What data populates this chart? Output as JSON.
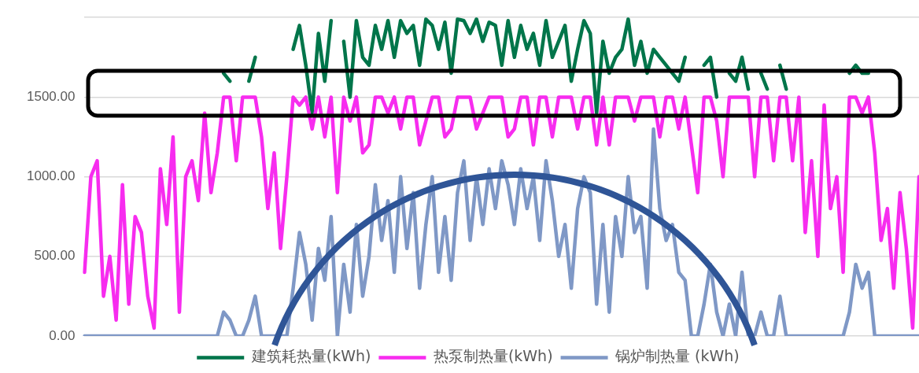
{
  "chart_data": {
    "type": "line",
    "categories": [
      null,
      null,
      null,
      null,
      null,
      null,
      null,
      null,
      null,
      null,
      null,
      null,
      null,
      null,
      null,
      null,
      null,
      null,
      null,
      null,
      null,
      null,
      null,
      null,
      null,
      null,
      null,
      null,
      null,
      null,
      null,
      null,
      null,
      null,
      null,
      null,
      null,
      null,
      null,
      null,
      null,
      null,
      null,
      null,
      null,
      null,
      null,
      null,
      null,
      null,
      null,
      null,
      null,
      null,
      null,
      null,
      null,
      null,
      null,
      null,
      null,
      null,
      null,
      null,
      null,
      null,
      null,
      null,
      null,
      null,
      null,
      null,
      null,
      null,
      null,
      null,
      null,
      null,
      null,
      null,
      null,
      null,
      null,
      null,
      null,
      null,
      null,
      null,
      null,
      null,
      null,
      null,
      null,
      null,
      null,
      null,
      null,
      null,
      null,
      null,
      null,
      null,
      null,
      null,
      null,
      null,
      null,
      null,
      null,
      null,
      null,
      null,
      null,
      null,
      null,
      null,
      null,
      null,
      null,
      null,
      null,
      null,
      null,
      null,
      null,
      null,
      null,
      null,
      null,
      null,
      null,
      null,
      null
    ],
    "series": [
      {
        "name": "建筑耗热量(kWh)",
        "color": "#00754a",
        "values": [
          null,
          null,
          null,
          null,
          null,
          null,
          null,
          null,
          null,
          null,
          null,
          null,
          null,
          null,
          null,
          null,
          null,
          null,
          null,
          null,
          null,
          null,
          1650,
          1600,
          null,
          null,
          1600,
          1750,
          null,
          null,
          null,
          null,
          null,
          1800,
          1950,
          1700,
          1400,
          1900,
          1600,
          1980,
          null,
          1850,
          1500,
          1980,
          1750,
          1700,
          1950,
          1800,
          1980,
          1750,
          1980,
          1900,
          1950,
          1700,
          1990,
          1950,
          1800,
          1970,
          1650,
          1990,
          1980,
          1900,
          1990,
          1850,
          1970,
          1950,
          1700,
          1980,
          1750,
          1950,
          1800,
          1900,
          1700,
          1980,
          1750,
          1850,
          1950,
          1600,
          1800,
          1980,
          1900,
          1400,
          1850,
          1650,
          1750,
          1800,
          1990,
          1700,
          1850,
          1650,
          1800,
          1750,
          1700,
          1650,
          1600,
          1750,
          null,
          null,
          1700,
          1750,
          1500,
          null,
          1650,
          1600,
          1750,
          1550,
          null,
          1650,
          1550,
          null,
          1700,
          1550,
          null,
          null,
          null,
          null,
          null,
          null,
          null,
          null,
          null,
          1650,
          1700,
          1650,
          1650,
          null,
          null,
          null,
          null,
          null,
          null,
          null,
          null
        ]
      },
      {
        "name": "热泵制热量(kWh)",
        "color": "#f72cef",
        "values": [
          400,
          1000,
          1100,
          250,
          500,
          100,
          950,
          200,
          750,
          650,
          250,
          50,
          1050,
          700,
          1250,
          150,
          1000,
          1100,
          850,
          1400,
          900,
          1150,
          1500,
          1500,
          1100,
          1500,
          1500,
          1500,
          1250,
          800,
          1150,
          550,
          1000,
          1500,
          1450,
          1500,
          1300,
          1500,
          1250,
          1500,
          900,
          1500,
          1350,
          1500,
          1150,
          1200,
          1500,
          1500,
          1400,
          1500,
          1300,
          1500,
          1500,
          1200,
          1350,
          1500,
          1500,
          1250,
          1300,
          1500,
          1500,
          1500,
          1300,
          1400,
          1500,
          1500,
          1500,
          1250,
          1300,
          1500,
          1500,
          1200,
          1500,
          1500,
          1250,
          1500,
          1500,
          1500,
          1300,
          1500,
          1500,
          1200,
          1500,
          1200,
          1500,
          1500,
          1500,
          1350,
          1500,
          1500,
          1500,
          1250,
          1500,
          1500,
          1300,
          1500,
          1200,
          900,
          1500,
          1500,
          1350,
          1000,
          1500,
          1500,
          1500,
          1500,
          1000,
          1500,
          1500,
          1100,
          1500,
          1500,
          1100,
          1500,
          650,
          1100,
          500,
          1450,
          800,
          1000,
          400,
          1500,
          1500,
          1400,
          1500,
          1150,
          600,
          800,
          300,
          900,
          550,
          50,
          1000
        ]
      },
      {
        "name": "锅炉制热量 (kWh)",
        "color": "#7f98c6",
        "values": [
          0,
          0,
          0,
          0,
          0,
          0,
          0,
          0,
          0,
          0,
          0,
          0,
          0,
          0,
          0,
          0,
          0,
          0,
          0,
          0,
          0,
          0,
          150,
          100,
          0,
          0,
          100,
          250,
          0,
          0,
          0,
          0,
          0,
          300,
          650,
          450,
          100,
          550,
          350,
          750,
          0,
          450,
          150,
          700,
          250,
          500,
          950,
          600,
          850,
          400,
          1000,
          550,
          900,
          300,
          700,
          1000,
          400,
          750,
          350,
          900,
          1100,
          600,
          1000,
          700,
          1050,
          800,
          1100,
          950,
          700,
          1050,
          800,
          1000,
          600,
          1100,
          850,
          500,
          700,
          300,
          800,
          1000,
          900,
          200,
          700,
          150,
          750,
          500,
          1000,
          650,
          750,
          300,
          1300,
          800,
          600,
          700,
          400,
          350,
          0,
          0,
          200,
          450,
          150,
          0,
          200,
          0,
          400,
          0,
          0,
          150,
          0,
          0,
          250,
          0,
          0,
          0,
          0,
          0,
          0,
          0,
          0,
          0,
          0,
          150,
          450,
          300,
          400,
          0,
          0,
          0,
          0,
          0,
          0,
          0,
          0
        ]
      }
    ],
    "ylim": [
      0,
      2000
    ],
    "yticks": [
      {
        "value": 0,
        "label": "0.00"
      },
      {
        "value": 500,
        "label": "500.00"
      },
      {
        "value": 1000,
        "label": "1000.00"
      },
      {
        "value": 1500,
        "label": "1500.00"
      },
      {
        "value": 2000,
        "label": null
      }
    ],
    "grid": "y",
    "legend": "bottom",
    "marker": "none",
    "line_style": "solid"
  }
}
